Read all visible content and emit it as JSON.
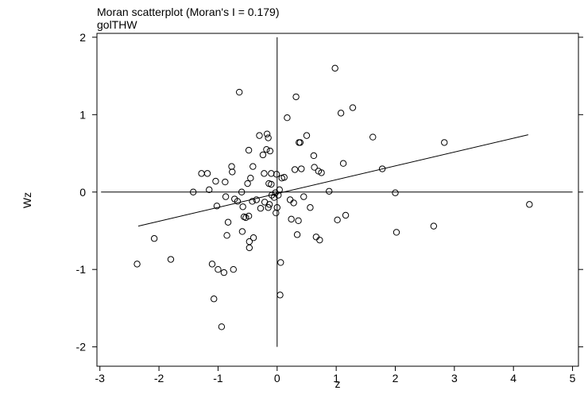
{
  "chart_data": {
    "type": "scatter",
    "title": "Moran scatterplot (Moran's I = 0.179)",
    "subtitle": "golTHW",
    "xlabel": "z",
    "ylabel": "Wz",
    "xlim": [
      -3.05,
      5.1
    ],
    "ylim": [
      -2.25,
      2.05
    ],
    "xticks": [
      -3,
      -2,
      -1,
      0,
      1,
      2,
      3,
      4,
      5
    ],
    "yticks": [
      -2,
      -1,
      0,
      1,
      2
    ],
    "ytick_labels": [
      "-2",
      "-1",
      "0",
      "1",
      "2"
    ],
    "regression_line": {
      "x": [
        -2.35,
        4.25
      ],
      "y": [
        -0.44,
        0.74
      ]
    },
    "reference_lines": {
      "x": 0,
      "y": 0,
      "vline_range": [
        -2.0,
        2.0
      ],
      "hline_range": [
        -2.98,
        5.0
      ]
    },
    "points": [
      {
        "x": -2.37,
        "y": -0.93
      },
      {
        "x": -2.08,
        "y": -0.6
      },
      {
        "x": -1.8,
        "y": -0.87
      },
      {
        "x": -1.42,
        "y": 0.0
      },
      {
        "x": -1.28,
        "y": 0.24
      },
      {
        "x": -1.18,
        "y": 0.24
      },
      {
        "x": -1.15,
        "y": 0.03
      },
      {
        "x": -1.1,
        "y": -0.93
      },
      {
        "x": -1.07,
        "y": -1.38
      },
      {
        "x": -1.04,
        "y": 0.14
      },
      {
        "x": -1.02,
        "y": -0.18
      },
      {
        "x": -1.0,
        "y": -1.0
      },
      {
        "x": -0.94,
        "y": -1.74
      },
      {
        "x": -0.9,
        "y": -1.04
      },
      {
        "x": -0.88,
        "y": 0.13
      },
      {
        "x": -0.87,
        "y": -0.06
      },
      {
        "x": -0.85,
        "y": -0.56
      },
      {
        "x": -0.83,
        "y": -0.39
      },
      {
        "x": -0.77,
        "y": 0.33
      },
      {
        "x": -0.76,
        "y": 0.26
      },
      {
        "x": -0.74,
        "y": -1.0
      },
      {
        "x": -0.72,
        "y": -0.09
      },
      {
        "x": -0.67,
        "y": -0.12
      },
      {
        "x": -0.64,
        "y": 1.29
      },
      {
        "x": -0.6,
        "y": 0.0
      },
      {
        "x": -0.59,
        "y": -0.51
      },
      {
        "x": -0.58,
        "y": -0.19
      },
      {
        "x": -0.56,
        "y": -0.32
      },
      {
        "x": -0.53,
        "y": -0.33
      },
      {
        "x": -0.5,
        "y": 0.11
      },
      {
        "x": -0.48,
        "y": -0.31
      },
      {
        "x": -0.48,
        "y": 0.54
      },
      {
        "x": -0.47,
        "y": -0.64
      },
      {
        "x": -0.47,
        "y": -0.72
      },
      {
        "x": -0.45,
        "y": 0.18
      },
      {
        "x": -0.42,
        "y": -0.12
      },
      {
        "x": -0.41,
        "y": 0.33
      },
      {
        "x": -0.4,
        "y": -0.59
      },
      {
        "x": -0.35,
        "y": -0.1
      },
      {
        "x": -0.3,
        "y": 0.73
      },
      {
        "x": -0.28,
        "y": -0.21
      },
      {
        "x": -0.24,
        "y": 0.48
      },
      {
        "x": -0.22,
        "y": 0.24
      },
      {
        "x": -0.21,
        "y": -0.13
      },
      {
        "x": -0.18,
        "y": 0.55
      },
      {
        "x": -0.17,
        "y": 0.75
      },
      {
        "x": -0.15,
        "y": -0.2
      },
      {
        "x": -0.15,
        "y": 0.7
      },
      {
        "x": -0.14,
        "y": 0.11
      },
      {
        "x": -0.13,
        "y": -0.16
      },
      {
        "x": -0.12,
        "y": 0.53
      },
      {
        "x": -0.1,
        "y": 0.1
      },
      {
        "x": -0.1,
        "y": 0.24
      },
      {
        "x": -0.09,
        "y": -0.04
      },
      {
        "x": -0.05,
        "y": -0.07
      },
      {
        "x": -0.03,
        "y": -0.01
      },
      {
        "x": -0.02,
        "y": -0.27
      },
      {
        "x": -0.01,
        "y": 0.23
      },
      {
        "x": 0.0,
        "y": -0.2
      },
      {
        "x": 0.02,
        "y": -0.04
      },
      {
        "x": 0.04,
        "y": 0.03
      },
      {
        "x": 0.05,
        "y": -1.33
      },
      {
        "x": 0.06,
        "y": -0.91
      },
      {
        "x": 0.08,
        "y": 0.18
      },
      {
        "x": 0.12,
        "y": 0.19
      },
      {
        "x": 0.17,
        "y": 0.96
      },
      {
        "x": 0.22,
        "y": -0.1
      },
      {
        "x": 0.24,
        "y": -0.35
      },
      {
        "x": 0.28,
        "y": -0.14
      },
      {
        "x": 0.3,
        "y": 0.29
      },
      {
        "x": 0.32,
        "y": 1.23
      },
      {
        "x": 0.34,
        "y": -0.55
      },
      {
        "x": 0.36,
        "y": -0.37
      },
      {
        "x": 0.37,
        "y": 0.64
      },
      {
        "x": 0.39,
        "y": 0.64
      },
      {
        "x": 0.41,
        "y": 0.3
      },
      {
        "x": 0.45,
        "y": -0.06
      },
      {
        "x": 0.5,
        "y": 0.73
      },
      {
        "x": 0.56,
        "y": -0.2
      },
      {
        "x": 0.62,
        "y": 0.47
      },
      {
        "x": 0.63,
        "y": 0.32
      },
      {
        "x": 0.66,
        "y": -0.58
      },
      {
        "x": 0.7,
        "y": 0.27
      },
      {
        "x": 0.72,
        "y": -0.62
      },
      {
        "x": 0.75,
        "y": 0.25
      },
      {
        "x": 0.88,
        "y": 0.01
      },
      {
        "x": 0.98,
        "y": 1.6
      },
      {
        "x": 1.02,
        "y": -0.36
      },
      {
        "x": 1.08,
        "y": 1.02
      },
      {
        "x": 1.12,
        "y": 0.37
      },
      {
        "x": 1.16,
        "y": -0.3
      },
      {
        "x": 1.28,
        "y": 1.09
      },
      {
        "x": 1.62,
        "y": 0.71
      },
      {
        "x": 1.78,
        "y": 0.3
      },
      {
        "x": 2.0,
        "y": -0.01
      },
      {
        "x": 2.02,
        "y": -0.52
      },
      {
        "x": 2.65,
        "y": -0.44
      },
      {
        "x": 2.83,
        "y": 0.64
      },
      {
        "x": 4.27,
        "y": -0.16
      }
    ],
    "grid": false,
    "legend": "none"
  }
}
